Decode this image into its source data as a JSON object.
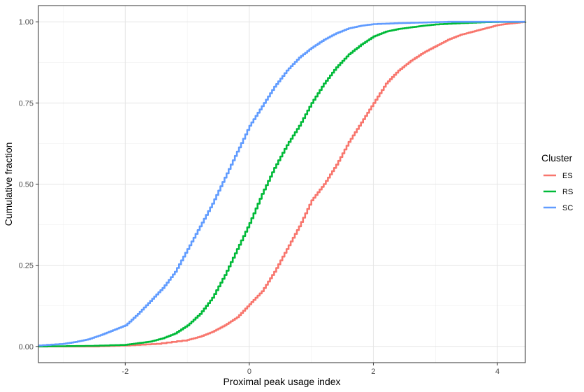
{
  "chart_data": {
    "type": "line",
    "subtype": "empirical-cdf",
    "xlabel": "Proximal peak usage index",
    "ylabel": "Cumulative fraction",
    "xlim": [
      -3.4,
      4.45
    ],
    "ylim": [
      -0.05,
      1.05
    ],
    "x_ticks": [
      -2,
      0,
      2,
      4
    ],
    "x_tick_labels": [
      "-2",
      "0",
      "2",
      "4"
    ],
    "y_ticks": [
      0,
      0.25,
      0.5,
      0.75,
      1
    ],
    "y_tick_labels": [
      "0.00",
      "0.25",
      "0.50",
      "0.75",
      "1.00"
    ],
    "grid": true,
    "legend": {
      "title": "Cluster",
      "position": "right"
    },
    "series": [
      {
        "name": "ES",
        "color": "#F8766D",
        "points": [
          [
            -3.4,
            0.0
          ],
          [
            -2.5,
            0.0
          ],
          [
            -2.0,
            0.003
          ],
          [
            -1.5,
            0.008
          ],
          [
            -1.0,
            0.02
          ],
          [
            -0.8,
            0.03
          ],
          [
            -0.6,
            0.045
          ],
          [
            -0.4,
            0.065
          ],
          [
            -0.2,
            0.09
          ],
          [
            0.0,
            0.13
          ],
          [
            0.2,
            0.17
          ],
          [
            0.4,
            0.23
          ],
          [
            0.6,
            0.3
          ],
          [
            0.8,
            0.37
          ],
          [
            1.0,
            0.45
          ],
          [
            1.2,
            0.5
          ],
          [
            1.4,
            0.56
          ],
          [
            1.6,
            0.63
          ],
          [
            1.8,
            0.69
          ],
          [
            2.0,
            0.75
          ],
          [
            2.2,
            0.81
          ],
          [
            2.4,
            0.85
          ],
          [
            2.6,
            0.88
          ],
          [
            2.8,
            0.905
          ],
          [
            3.0,
            0.925
          ],
          [
            3.2,
            0.945
          ],
          [
            3.4,
            0.96
          ],
          [
            3.6,
            0.97
          ],
          [
            3.8,
            0.98
          ],
          [
            4.0,
            0.99
          ],
          [
            4.2,
            0.995
          ],
          [
            4.45,
            1.0
          ]
        ]
      },
      {
        "name": "RS",
        "color": "#00BA38",
        "points": [
          [
            -3.4,
            0.0
          ],
          [
            -2.5,
            0.002
          ],
          [
            -2.0,
            0.005
          ],
          [
            -1.8,
            0.01
          ],
          [
            -1.6,
            0.015
          ],
          [
            -1.4,
            0.025
          ],
          [
            -1.2,
            0.04
          ],
          [
            -1.0,
            0.065
          ],
          [
            -0.8,
            0.1
          ],
          [
            -0.6,
            0.15
          ],
          [
            -0.4,
            0.22
          ],
          [
            -0.2,
            0.3
          ],
          [
            0.0,
            0.38
          ],
          [
            0.2,
            0.47
          ],
          [
            0.4,
            0.55
          ],
          [
            0.6,
            0.62
          ],
          [
            0.8,
            0.68
          ],
          [
            1.0,
            0.75
          ],
          [
            1.2,
            0.81
          ],
          [
            1.4,
            0.86
          ],
          [
            1.6,
            0.9
          ],
          [
            1.8,
            0.93
          ],
          [
            2.0,
            0.955
          ],
          [
            2.2,
            0.97
          ],
          [
            2.4,
            0.978
          ],
          [
            2.6,
            0.983
          ],
          [
            2.8,
            0.988
          ],
          [
            3.0,
            0.992
          ],
          [
            3.4,
            0.996
          ],
          [
            3.8,
            0.999
          ],
          [
            4.45,
            1.0
          ]
        ]
      },
      {
        "name": "SC",
        "color": "#619CFF",
        "points": [
          [
            -3.4,
            0.003
          ],
          [
            -3.0,
            0.008
          ],
          [
            -2.8,
            0.014
          ],
          [
            -2.6,
            0.022
          ],
          [
            -2.4,
            0.035
          ],
          [
            -2.2,
            0.05
          ],
          [
            -2.0,
            0.065
          ],
          [
            -1.8,
            0.1
          ],
          [
            -1.6,
            0.14
          ],
          [
            -1.4,
            0.18
          ],
          [
            -1.2,
            0.23
          ],
          [
            -1.0,
            0.3
          ],
          [
            -0.8,
            0.37
          ],
          [
            -0.6,
            0.44
          ],
          [
            -0.4,
            0.52
          ],
          [
            -0.2,
            0.6
          ],
          [
            0.0,
            0.68
          ],
          [
            0.2,
            0.74
          ],
          [
            0.4,
            0.8
          ],
          [
            0.6,
            0.85
          ],
          [
            0.8,
            0.89
          ],
          [
            1.0,
            0.92
          ],
          [
            1.2,
            0.945
          ],
          [
            1.4,
            0.965
          ],
          [
            1.6,
            0.98
          ],
          [
            1.8,
            0.988
          ],
          [
            2.0,
            0.993
          ],
          [
            2.4,
            0.996
          ],
          [
            2.8,
            0.998
          ],
          [
            3.2,
            1.0
          ],
          [
            4.45,
            1.0
          ]
        ]
      }
    ]
  }
}
